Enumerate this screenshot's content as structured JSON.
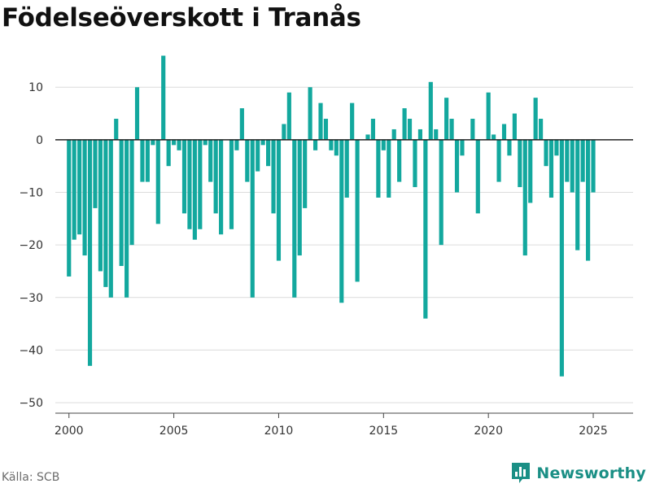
{
  "title": "Födelseöverskott i Tranås",
  "source": "Källa: SCB",
  "brand": {
    "name": "Newsworthy",
    "icon": "bar-chart-logo-icon",
    "color": "#1a8f85"
  },
  "chart_data": {
    "type": "bar",
    "title": "Födelseöverskott i Tranås",
    "xlabel": "",
    "ylabel": "",
    "bar_color": "#13a89e",
    "grid": true,
    "ylim": [
      -52,
      17
    ],
    "xlim": [
      1999.35,
      2026.9
    ],
    "x_ticks": [
      2000,
      2005,
      2010,
      2015,
      2020,
      2025
    ],
    "y_ticks": [
      10,
      0,
      -10,
      -20,
      -30,
      -40,
      -50
    ],
    "y_tick_labels": [
      "10",
      "0",
      "−10",
      "−20",
      "−30",
      "−40",
      "−50"
    ],
    "start_quarter": "2000 Q1",
    "end_quarter": "2025 Q2",
    "quarters": [
      "2000 Q1",
      "2000 Q2",
      "2000 Q3",
      "2000 Q4",
      "2001 Q1",
      "2001 Q2",
      "2001 Q3",
      "2001 Q4",
      "2002 Q1",
      "2002 Q2",
      "2002 Q3",
      "2002 Q4",
      "2003 Q1",
      "2003 Q2",
      "2003 Q3",
      "2003 Q4",
      "2004 Q1",
      "2004 Q2",
      "2004 Q3",
      "2004 Q4",
      "2005 Q1",
      "2005 Q2",
      "2005 Q3",
      "2005 Q4",
      "2006 Q1",
      "2006 Q2",
      "2006 Q3",
      "2006 Q4",
      "2007 Q1",
      "2007 Q2",
      "2007 Q3",
      "2007 Q4",
      "2008 Q1",
      "2008 Q2",
      "2008 Q3",
      "2008 Q4",
      "2009 Q1",
      "2009 Q2",
      "2009 Q3",
      "2009 Q4",
      "2010 Q1",
      "2010 Q2",
      "2010 Q3",
      "2010 Q4",
      "2011 Q1",
      "2011 Q2",
      "2011 Q3",
      "2011 Q4",
      "2012 Q1",
      "2012 Q2",
      "2012 Q3",
      "2012 Q4",
      "2013 Q1",
      "2013 Q2",
      "2013 Q3",
      "2013 Q4",
      "2014 Q1",
      "2014 Q2",
      "2014 Q3",
      "2014 Q4",
      "2015 Q1",
      "2015 Q2",
      "2015 Q3",
      "2015 Q4",
      "2016 Q1",
      "2016 Q2",
      "2016 Q3",
      "2016 Q4",
      "2017 Q1",
      "2017 Q2",
      "2017 Q3",
      "2017 Q4",
      "2018 Q1",
      "2018 Q2",
      "2018 Q3",
      "2018 Q4",
      "2019 Q1",
      "2019 Q2",
      "2019 Q3",
      "2019 Q4",
      "2020 Q1",
      "2020 Q2",
      "2020 Q3",
      "2020 Q4",
      "2021 Q1",
      "2021 Q2",
      "2021 Q3",
      "2021 Q4",
      "2022 Q1",
      "2022 Q2",
      "2022 Q3",
      "2022 Q4",
      "2023 Q1",
      "2023 Q2",
      "2023 Q3",
      "2023 Q4",
      "2024 Q1",
      "2024 Q2",
      "2024 Q3",
      "2024 Q4",
      "2025 Q1",
      "2025 Q2"
    ],
    "values": [
      -26,
      -19,
      -18,
      -22,
      -43,
      -13,
      -25,
      -28,
      -30,
      4,
      -24,
      -30,
      -20,
      10,
      -8,
      -8,
      -1,
      -16,
      16,
      -5,
      -1,
      -2,
      -14,
      -17,
      -19,
      -17,
      -1,
      -8,
      -14,
      -18,
      0,
      -17,
      -2,
      6,
      -8,
      -30,
      -6,
      -1,
      -5,
      -14,
      -23,
      3,
      9,
      -30,
      -22,
      -13,
      10,
      -2,
      7,
      4,
      -2,
      -3,
      -31,
      -11,
      7,
      -27,
      0,
      1,
      4,
      -11,
      -2,
      -11,
      2,
      -8,
      6,
      4,
      -9,
      2,
      -34,
      11,
      2,
      -20,
      8,
      4,
      -10,
      -3,
      0,
      4,
      -14,
      0,
      9,
      1,
      -8,
      3,
      -3,
      5,
      -9,
      -22,
      -12,
      8,
      4,
      -5,
      -11,
      -3,
      -45,
      -8,
      -10,
      -21,
      -8,
      -23,
      -10,
      0
    ]
  }
}
